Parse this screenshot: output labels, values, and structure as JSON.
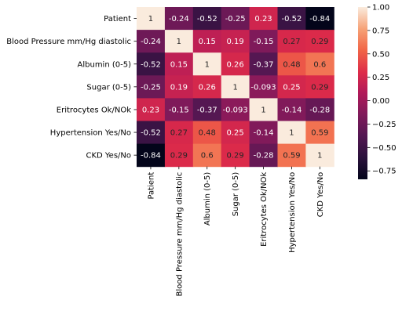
{
  "chart_data": {
    "type": "heatmap",
    "title": "",
    "xlabel": "",
    "ylabel": "",
    "rows": [
      "Patient",
      "Blood Pressure mm/Hg diastolic",
      "Albumin (0-5)",
      "Sugar (0-5)",
      "Eritrocytes Ok/NOk",
      "Hypertension Yes/No",
      "CKD Yes/No"
    ],
    "columns": [
      "Patient",
      "Blood Pressure mm/Hg diastolic",
      "Albumin (0-5)",
      "Sugar (0-5)",
      "Eritrocytes Ok/NOk",
      "Hypertension Yes/No",
      "CKD Yes/No"
    ],
    "values": [
      [
        1,
        -0.24,
        -0.52,
        -0.25,
        0.23,
        -0.52,
        -0.84
      ],
      [
        -0.24,
        1,
        0.15,
        0.19,
        -0.15,
        0.27,
        0.29
      ],
      [
        -0.52,
        0.15,
        1,
        0.26,
        -0.37,
        0.48,
        0.6
      ],
      [
        -0.25,
        0.19,
        0.26,
        1,
        -0.093,
        0.25,
        0.29
      ],
      [
        0.23,
        -0.15,
        -0.37,
        -0.093,
        1,
        -0.14,
        -0.28
      ],
      [
        -0.52,
        0.27,
        0.48,
        0.25,
        -0.14,
        1,
        0.59
      ],
      [
        -0.84,
        0.29,
        0.6,
        0.29,
        -0.28,
        0.59,
        1
      ]
    ],
    "annotations": [
      [
        "1",
        "-0.24",
        "-0.52",
        "-0.25",
        "0.23",
        "-0.52",
        "-0.84"
      ],
      [
        "-0.24",
        "1",
        "0.15",
        "0.19",
        "-0.15",
        "0.27",
        "0.29"
      ],
      [
        "-0.52",
        "0.15",
        "1",
        "0.26",
        "-0.37",
        "0.48",
        "0.6"
      ],
      [
        "-0.25",
        "0.19",
        "0.26",
        "1",
        "-0.093",
        "0.25",
        "0.29"
      ],
      [
        "0.23",
        "-0.15",
        "-0.37",
        "-0.093",
        "1",
        "-0.14",
        "-0.28"
      ],
      [
        "-0.52",
        "0.27",
        "0.48",
        "0.25",
        "-0.14",
        "1",
        "0.59"
      ],
      [
        "-0.84",
        "0.29",
        "0.6",
        "0.29",
        "-0.28",
        "0.59",
        "1"
      ]
    ],
    "colormap": "rocket",
    "colorbar": {
      "range": [
        -0.84,
        1
      ],
      "ticks": [
        1.0,
        0.75,
        0.5,
        0.25,
        0.0,
        -0.25,
        -0.5,
        -0.75
      ],
      "tick_labels": [
        "1.00",
        "0.75",
        "0.50",
        "0.25",
        "0.00",
        "−0.25",
        "−0.50",
        "−0.75"
      ],
      "position": "right"
    },
    "grid": false,
    "legend": "none"
  }
}
